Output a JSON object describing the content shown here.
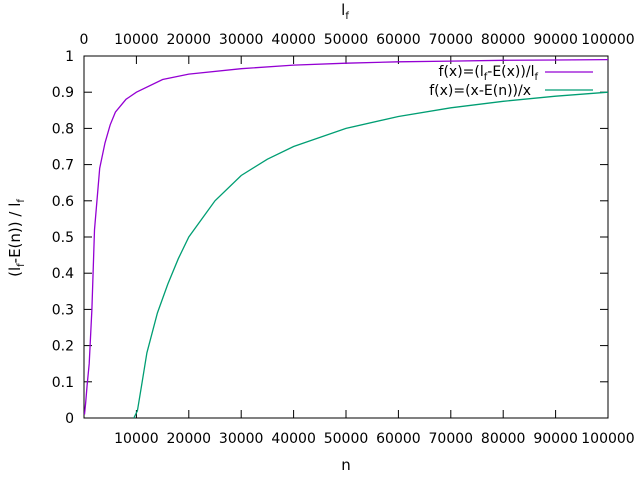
{
  "chart_data": {
    "type": "line",
    "xlabel": "n",
    "x2label": "l_f",
    "ylabel": "(l_f-E(n)) / l_f",
    "xlim": [
      0,
      100000
    ],
    "ylim": [
      0,
      1
    ],
    "x_ticks_bottom": [
      10000,
      20000,
      30000,
      40000,
      50000,
      60000,
      70000,
      80000,
      90000,
      100000
    ],
    "x_ticks_top": [
      0,
      10000,
      20000,
      30000,
      40000,
      50000,
      60000,
      70000,
      80000,
      90000,
      100000
    ],
    "y_ticks": [
      0,
      0.1,
      0.2,
      0.3,
      0.4,
      0.5,
      0.6,
      0.7,
      0.8,
      0.9,
      1
    ],
    "grid": false,
    "legend_position": "top-right",
    "series": [
      {
        "name": "f(x)=(l_f-E(x))/l_f",
        "color": "#9400d3",
        "x": [
          100,
          300,
          600,
          1000,
          1500,
          2000,
          3000,
          4000,
          5000,
          6000,
          8000,
          10000,
          15000,
          20000,
          30000,
          40000,
          50000,
          60000,
          70000,
          80000,
          90000,
          100000
        ],
        "y": [
          0.01,
          0.04,
          0.09,
          0.15,
          0.3,
          0.52,
          0.69,
          0.76,
          0.81,
          0.845,
          0.88,
          0.9,
          0.935,
          0.95,
          0.965,
          0.975,
          0.98,
          0.984,
          0.986,
          0.988,
          0.989,
          0.99
        ]
      },
      {
        "name": "f(x)=(x-E(n))/x",
        "color": "#009e73",
        "x": [
          9500,
          10200,
          11000,
          12000,
          14000,
          16000,
          18000,
          20000,
          25000,
          30000,
          35000,
          40000,
          50000,
          60000,
          70000,
          80000,
          90000,
          100000
        ],
        "y": [
          0,
          0.02,
          0.09,
          0.18,
          0.29,
          0.37,
          0.44,
          0.5,
          0.6,
          0.67,
          0.715,
          0.75,
          0.8,
          0.833,
          0.857,
          0.875,
          0.889,
          0.9
        ]
      }
    ]
  }
}
